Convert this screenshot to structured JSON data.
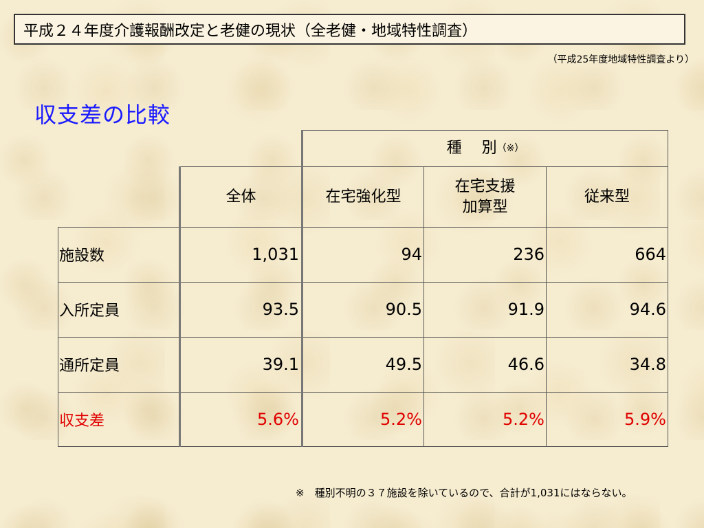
{
  "title": "平成２４年度介護報酬改定と老健の現状（全老健・地域特性調査）",
  "source": "（平成25年度地域特性調査より）",
  "heading": "収支差の比較",
  "table": {
    "group_header": "種　 別",
    "group_header_mark": "（※）",
    "columns": [
      "全体",
      "在宅強化型",
      "在宅支援\n加算型",
      "従来型"
    ],
    "rows": [
      {
        "label": "施設数",
        "values": [
          "1,031",
          "94",
          "236",
          "664"
        ]
      },
      {
        "label": "入所定員",
        "values": [
          "93.5",
          "90.5",
          "91.9",
          "94.6"
        ]
      },
      {
        "label": "通所定員",
        "values": [
          "39.1",
          "49.5",
          "46.6",
          "34.8"
        ]
      },
      {
        "label": "収支差",
        "values": [
          "5.6%",
          "5.2%",
          "5.2%",
          "5.9%"
        ],
        "color": "#e00000"
      }
    ]
  },
  "note": "※　種別不明の３７施設を除いているので、合計が1,031にはならない。"
}
